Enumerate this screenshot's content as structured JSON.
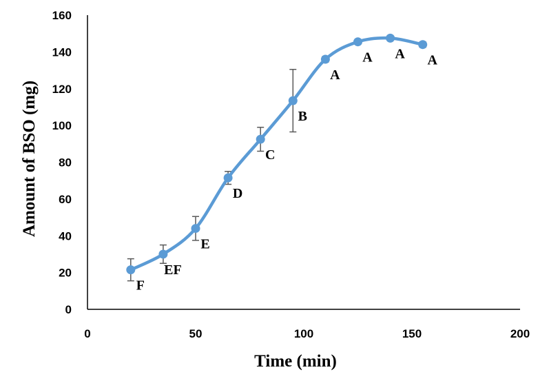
{
  "chart_data": {
    "type": "line",
    "xlabel": "Time (min)",
    "ylabel": "Amount of BSO (mg)",
    "xlim": [
      0,
      200
    ],
    "ylim": [
      0,
      160
    ],
    "x_ticks": [
      "0",
      "50",
      "100",
      "150",
      "200"
    ],
    "y_ticks": [
      "0",
      "20",
      "40",
      "60",
      "80",
      "100",
      "120",
      "140",
      "160"
    ],
    "grid": false,
    "legend": "none",
    "smooth": true,
    "line_color": "#5b9bd5",
    "error_bar_color": "#595959",
    "series": [
      {
        "x": [
          20,
          35,
          50,
          65,
          80,
          95,
          110,
          125,
          140,
          155
        ],
        "y": [
          21.5,
          30,
          44,
          71.5,
          92.5,
          113.5,
          136,
          145.5,
          147.5,
          144
        ],
        "error": [
          6,
          5,
          6.5,
          3.5,
          6.5,
          17,
          1.5,
          1,
          0.5,
          1.5
        ],
        "labels": [
          "F",
          "EF",
          "E",
          "D",
          "C",
          "B",
          "A",
          "A",
          "A",
          "A"
        ]
      }
    ]
  }
}
